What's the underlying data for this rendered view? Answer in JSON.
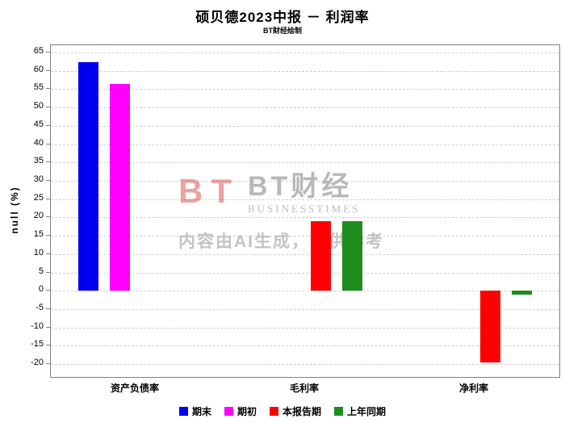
{
  "header": {
    "title": "硕贝德2023中报 － 利润率",
    "subtitle": "BT财经绘制"
  },
  "watermark": {
    "logo": "BT",
    "brand": "BT财经",
    "brand_sub": "BUSINESSTIMES",
    "notice": "内容由AI生成，仅供参考"
  },
  "chart_data": {
    "type": "bar",
    "title": "硕贝德2023中报 － 利润率",
    "subtitle": "BT财经绘制",
    "xlabel": "",
    "ylabel": "null (%)",
    "categories": [
      "资产负债率",
      "毛利率",
      "净利率"
    ],
    "series": [
      {
        "name": "期末",
        "color": "#0000EE",
        "values": [
          62.4,
          null,
          null
        ]
      },
      {
        "name": "期初",
        "color": "#FF00FF",
        "values": [
          56.5,
          null,
          null
        ]
      },
      {
        "name": "本报告期",
        "color": "#FF0000",
        "values": [
          null,
          19.0,
          -19.5
        ]
      },
      {
        "name": "上年同期",
        "color": "#1E8C1E",
        "values": [
          null,
          18.9,
          -1.0
        ]
      }
    ],
    "ylim": [
      -23.5,
      67
    ],
    "yticks": [
      65,
      60,
      55,
      50,
      45,
      40,
      35,
      30,
      25,
      20,
      15,
      10,
      5,
      0,
      -5,
      -10,
      -15,
      -20
    ],
    "grid": true,
    "grid_style": "dashed-horizontal",
    "legend_position": "bottom"
  }
}
